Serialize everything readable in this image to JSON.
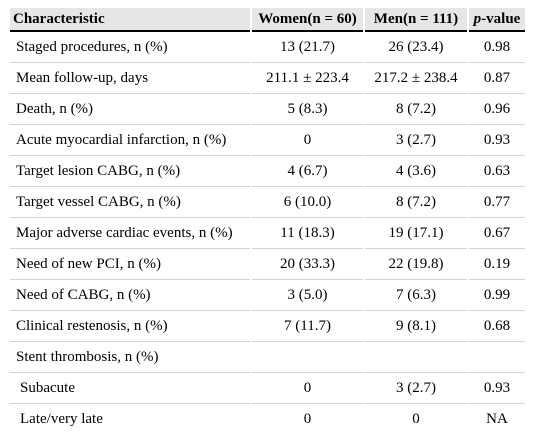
{
  "table": {
    "headers": [
      "Characteristic",
      "Women(n = 60)",
      "Men(n = 111)",
      "p-value"
    ],
    "header_p_italic": "p",
    "header_p_rest": "-value",
    "rows": [
      [
        "Staged procedures, n (%)",
        "13 (21.7)",
        "26 (23.4)",
        "0.98"
      ],
      [
        "Mean follow-up, days",
        "211.1 ± 223.4",
        "217.2 ± 238.4",
        "0.87"
      ],
      [
        "Death, n (%)",
        "5 (8.3)",
        "8 (7.2)",
        "0.96"
      ],
      [
        "Acute myocardial infarction, n (%)",
        "0",
        "3 (2.7)",
        "0.93"
      ],
      [
        "Target lesion CABG, n (%)",
        "4 (6.7)",
        "4 (3.6)",
        "0.63"
      ],
      [
        "Target vessel CABG, n (%)",
        "6 (10.0)",
        "8 (7.2)",
        "0.77"
      ],
      [
        "Major adverse cardiac events, n (%)",
        "11 (18.3)",
        "19 (17.1)",
        "0.67"
      ],
      [
        "Need of new PCI, n (%)",
        "20 (33.3)",
        "22 (19.8)",
        "0.19"
      ],
      [
        "Need of CABG, n (%)",
        "3 (5.0)",
        "7 (6.3)",
        "0.99"
      ],
      [
        "Clinical restenosis, n (%)",
        "7 (11.7)",
        "9 (8.1)",
        "0.68"
      ],
      [
        "Stent thrombosis, n (%)",
        "",
        "",
        ""
      ],
      [
        "Subacute",
        "0",
        "3 (2.7)",
        "0.93"
      ],
      [
        "Late/very late",
        "0",
        "0",
        "NA"
      ]
    ]
  }
}
